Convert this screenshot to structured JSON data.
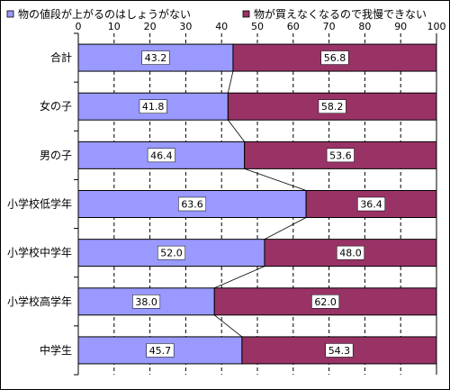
{
  "chart_data": {
    "type": "bar",
    "orientation": "horizontal",
    "stacked": true,
    "categories": [
      "合計",
      "女の子",
      "男の子",
      "小学校低学年",
      "小学校中学年",
      "小学校高学年",
      "中学生"
    ],
    "series": [
      {
        "name": "物の値段が上がるのはしょうがない",
        "values": [
          43.2,
          41.8,
          46.4,
          63.6,
          52.0,
          38.0,
          45.7
        ],
        "labels": [
          "43.2",
          "41.8",
          "46.4",
          "63.6",
          "52.0",
          "38.0",
          "45.7"
        ],
        "color": "#9999ff"
      },
      {
        "name": "物が買えなくなるので我慢できない",
        "values": [
          56.8,
          58.2,
          53.6,
          36.4,
          48.0,
          62.0,
          54.3
        ],
        "labels": [
          "56.8",
          "58.2",
          "53.6",
          "36.4",
          "48.0",
          "62.0",
          "54.3"
        ],
        "color": "#993366"
      }
    ],
    "xlim": [
      0,
      100
    ],
    "xticks": [
      "0",
      "10",
      "20",
      "30",
      "40",
      "50",
      "60",
      "70",
      "80",
      "90",
      "100"
    ],
    "grid": true,
    "legend": "top",
    "series_lines": true
  }
}
